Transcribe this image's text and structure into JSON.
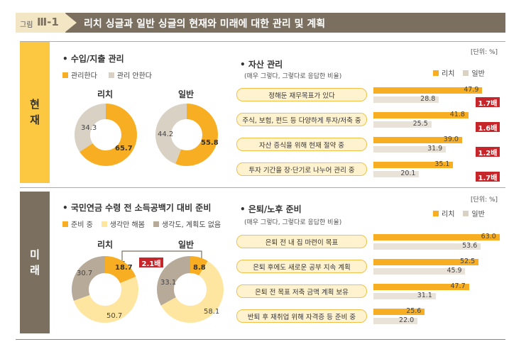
{
  "header": {
    "prefix": "그림",
    "number": "Ⅲ-1",
    "title": "리치 싱글과 일반 싱글의 현재와 미래에 대한 관리 및 계획"
  },
  "side": {
    "now": [
      "현",
      "재"
    ],
    "future": [
      "미",
      "래"
    ]
  },
  "unit": "[단위: %]",
  "rich": "리치",
  "general": "일반",
  "colors": {
    "gold": "#f7ae22",
    "beige": "#d9d1c3",
    "light_yellow": "#ffe6a0",
    "taupe": "#b7aa99",
    "header_brown": "#7b7060",
    "red": "#c6252a"
  },
  "chart_data": [
    {
      "type": "pie",
      "section": "• 수입/지출 관리",
      "legend": [
        "관리한다",
        "관리 안한다"
      ],
      "rich": [
        65.7,
        34.3
      ],
      "general": [
        55.8,
        44.2
      ],
      "rich_labels": [
        "65.7",
        "34.3"
      ],
      "general_labels": [
        "55.8",
        "44.2"
      ]
    },
    {
      "type": "bar",
      "section": "• 자산 관리",
      "note": "(매우 그렇다, 그렇다로 응답한 비율)",
      "categories": [
        "정해둔 재무목표가 있다",
        "주식, 보험, 펀드 등 다양하게 투자/저축 중",
        "자산 증식을 위해 현재 절약 중",
        "투자 기간을 장·단기로 나누어 관리 중"
      ],
      "series": [
        {
          "name": "리치",
          "values": [
            47.9,
            41.8,
            39.0,
            35.1
          ],
          "labels": [
            "47.9",
            "41.8",
            "39.0",
            "35.1"
          ]
        },
        {
          "name": "일반",
          "values": [
            28.8,
            25.5,
            31.9,
            20.1
          ],
          "labels": [
            "28.8",
            "25.5",
            "31.9",
            "20.1"
          ]
        }
      ],
      "multipliers": [
        "1.7배",
        "1.6배",
        "1.2배",
        "1.7배"
      ]
    },
    {
      "type": "pie",
      "section": "• 국민연금 수령 전 소득공백기 대비 준비",
      "legend": [
        "준비 중",
        "생각만 해봄",
        "생각도, 계획도 없음"
      ],
      "rich": [
        18.7,
        50.7,
        30.7
      ],
      "general": [
        8.8,
        58.1,
        33.1
      ],
      "rich_labels": [
        "18.7",
        "50.7",
        "30.7"
      ],
      "general_labels": [
        "8.8",
        "58.1",
        "33.1"
      ],
      "annotation": "2.1배"
    },
    {
      "type": "bar",
      "section": "• 은퇴/노후 준비",
      "note": "(매우 그렇다, 그렇다로 응답한 비율)",
      "categories": [
        "은퇴 전 내 집 마련이 목표",
        "은퇴 후에도 새로운 공부 지속 계획",
        "은퇴 전 목표 저축 금액 계획 보유",
        "반퇴 후 재취업 위해 자격증 등 준비 중"
      ],
      "series": [
        {
          "name": "리치",
          "values": [
            63.0,
            52.5,
            47.7,
            25.6
          ],
          "labels": [
            "63.0",
            "52.5",
            "47.7",
            "25.6"
          ]
        },
        {
          "name": "일반",
          "values": [
            53.6,
            45.9,
            31.1,
            22.0
          ],
          "labels": [
            "53.6",
            "45.9",
            "31.1",
            "22.0"
          ]
        }
      ]
    }
  ]
}
